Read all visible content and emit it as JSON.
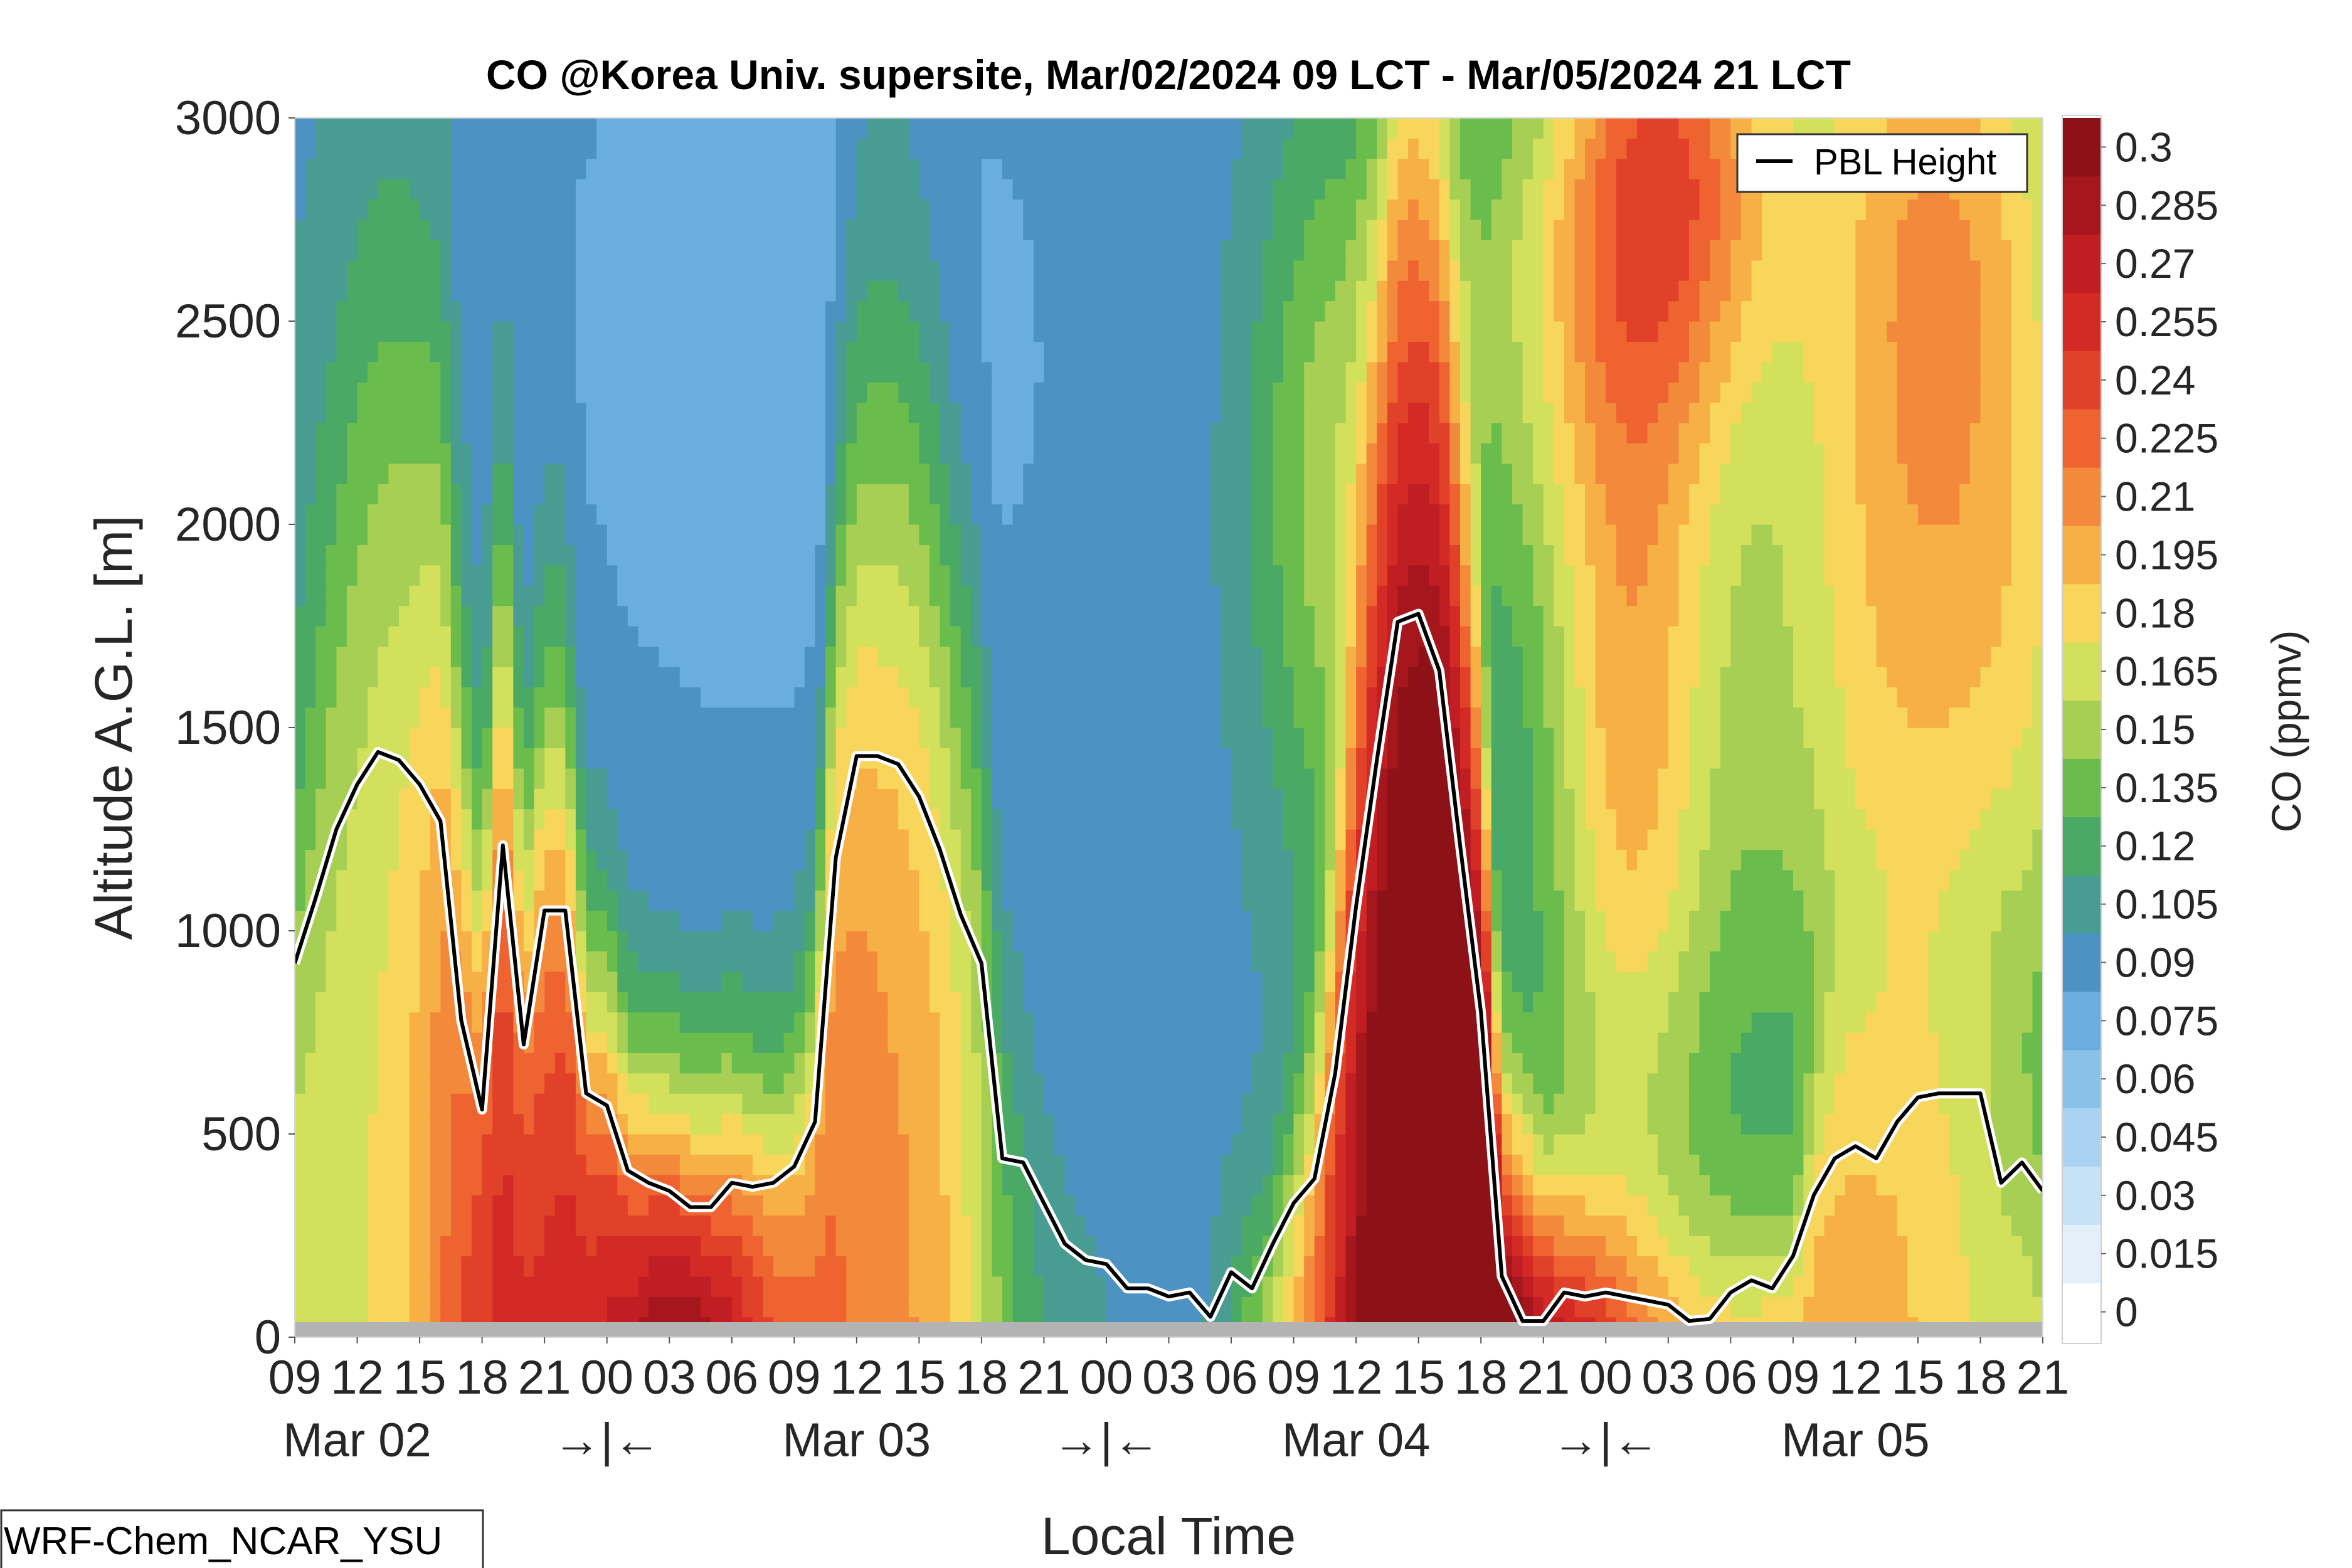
{
  "chart_data": {
    "type": "heatmap",
    "title": "CO @Korea Univ. supersite, Mar/02/2024 09 LCT - Mar/05/2024 21 LCT",
    "xlabel": "Local Time",
    "ylabel": "Altitude A.G.L. [m]",
    "colorbar_label": "CO (ppmv)",
    "model_label": "WRF-Chem_NCAR_YSU",
    "ylim": [
      0,
      3000
    ],
    "y_ticks": [
      "0",
      "500",
      "1000",
      "1500",
      "2000",
      "2500",
      "3000"
    ],
    "x_range_hours": [
      0,
      84
    ],
    "x_hour_labels": [
      "09",
      "12",
      "15",
      "18",
      "21",
      "00",
      "03",
      "06",
      "09",
      "12",
      "15",
      "18",
      "21",
      "00",
      "03",
      "06",
      "09",
      "12",
      "15",
      "18",
      "21",
      "00",
      "03",
      "06",
      "09",
      "12",
      "15",
      "18",
      "21"
    ],
    "date_labels": [
      "Mar 02",
      "Mar 03",
      "Mar 04",
      "Mar 05"
    ],
    "day_break_marker": "→|←",
    "colorbar_ticks": [
      "0",
      "0.015",
      "0.03",
      "0.045",
      "0.06",
      "0.075",
      "0.09",
      "0.105",
      "0.12",
      "0.135",
      "0.15",
      "0.165",
      "0.18",
      "0.195",
      "0.21",
      "0.225",
      "0.24",
      "0.255",
      "0.27",
      "0.285",
      "0.3"
    ],
    "colorbar_colors": [
      "#ffffff",
      "#e3f0fa",
      "#c6e2f5",
      "#a9d3f0",
      "#8ac1e8",
      "#6aaedf",
      "#4c92c3",
      "#489c92",
      "#4aaa65",
      "#6abd4c",
      "#a6cf54",
      "#d3e05c",
      "#f8d65c",
      "#f7b045",
      "#f3893a",
      "#ee6330",
      "#e14128",
      "#d42a26",
      "#c01e22",
      "#a5161d",
      "#8c1218"
    ],
    "series": [
      {
        "name": "PBL Height",
        "x": [
          0,
          1,
          2,
          3,
          4,
          5,
          6,
          7,
          8,
          9,
          10,
          11,
          12,
          13,
          14,
          15,
          16,
          17,
          18,
          19,
          20,
          21,
          22,
          23,
          24,
          25,
          26,
          27,
          28,
          29,
          30,
          31,
          32,
          33,
          34,
          35,
          36,
          37,
          38,
          39,
          40,
          41,
          42,
          43,
          44,
          45,
          46,
          47,
          48,
          49,
          50,
          51,
          52,
          53,
          54,
          55,
          56,
          57,
          58,
          59,
          60,
          61,
          62,
          63,
          64,
          65,
          66,
          67,
          68,
          69,
          70,
          71,
          72,
          73,
          74,
          75,
          76,
          77,
          78,
          79,
          80,
          81,
          82,
          83,
          84
        ],
        "y": [
          920,
          1080,
          1250,
          1360,
          1440,
          1420,
          1360,
          1270,
          780,
          560,
          1210,
          720,
          1050,
          1050,
          600,
          570,
          410,
          380,
          360,
          320,
          320,
          380,
          370,
          380,
          420,
          530,
          1180,
          1430,
          1430,
          1410,
          1330,
          1200,
          1040,
          920,
          440,
          430,
          330,
          230,
          190,
          180,
          120,
          120,
          100,
          110,
          50,
          160,
          120,
          230,
          330,
          390,
          650,
          1060,
          1420,
          1760,
          1780,
          1640,
          1210,
          800,
          150,
          40,
          40,
          110,
          100,
          110,
          100,
          90,
          80,
          40,
          45,
          110,
          140,
          120,
          200,
          350,
          440,
          470,
          440,
          530,
          590,
          600,
          600,
          600,
          380,
          430,
          360
        ]
      }
    ]
  }
}
